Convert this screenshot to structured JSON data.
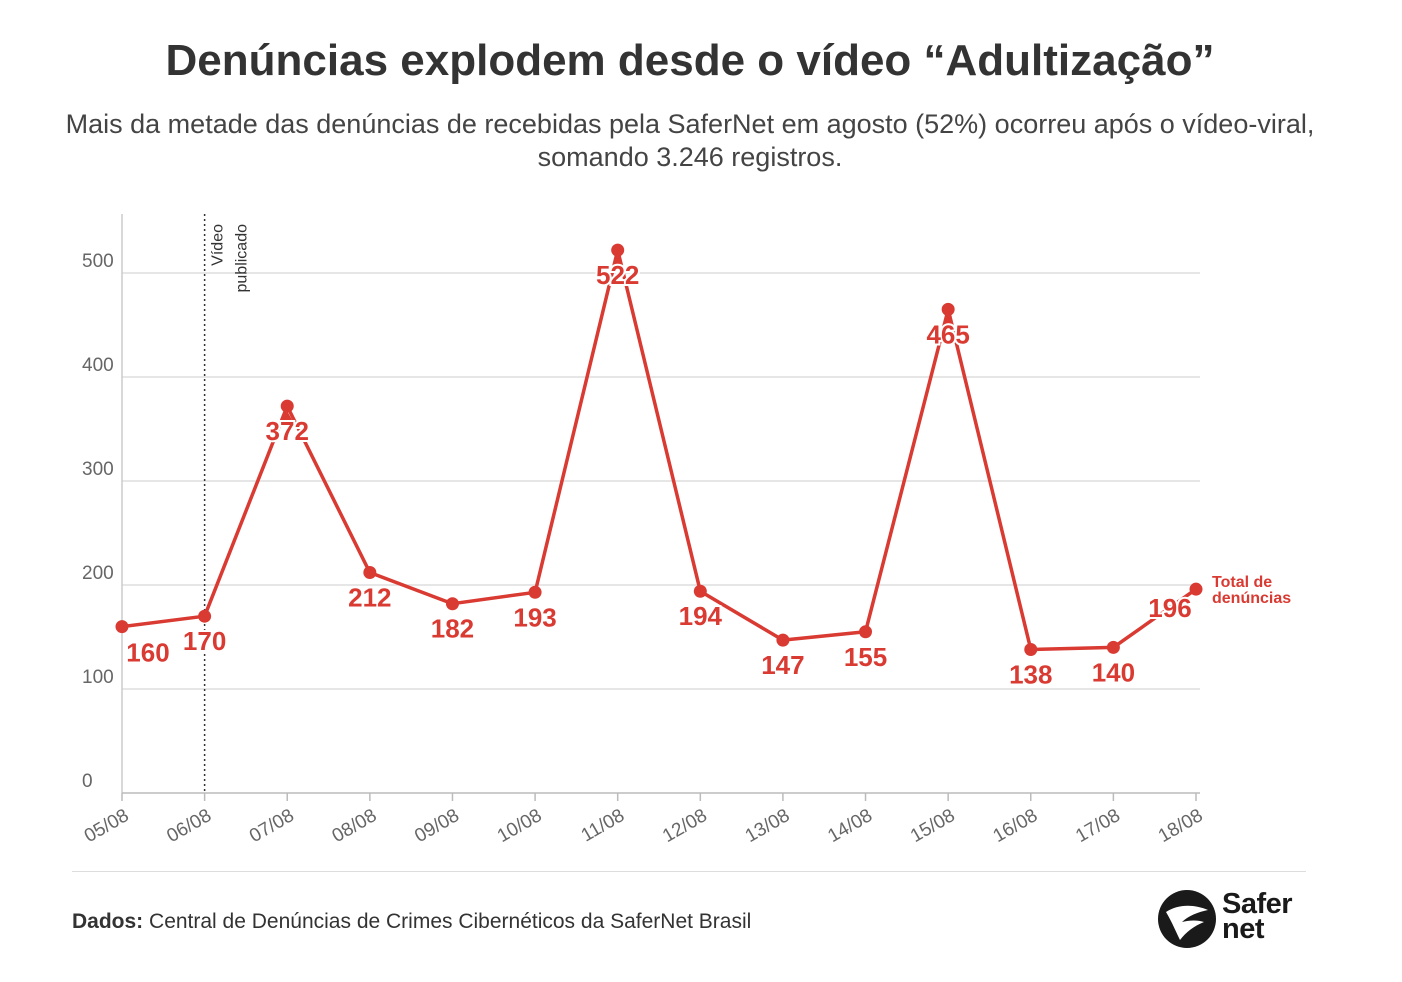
{
  "header": {
    "title": "Denúncias explodem desde o vídeo “Adultização”",
    "subtitle": "Mais da metade das denúncias de recebidas pela SaferNet em agosto (52%) ocorreu após o vídeo-viral, somando 3.246 registros."
  },
  "chart_data": {
    "type": "line",
    "title": "Denúncias explodem desde o vídeo “Adultização”",
    "subtitle": "Mais da metade das denúncias de recebidas pela SaferNet em agosto (52%) ocorreu após o vídeo-viral, somando 3.246 registros.",
    "categories": [
      "05/08",
      "06/08",
      "07/08",
      "08/08",
      "09/08",
      "10/08",
      "11/08",
      "12/08",
      "13/08",
      "14/08",
      "15/08",
      "16/08",
      "17/08",
      "18/08"
    ],
    "series": [
      {
        "name": "Total de denúncias",
        "values": [
          160,
          170,
          372,
          212,
          182,
          193,
          522,
          194,
          147,
          155,
          465,
          138,
          140,
          196
        ],
        "color": "#d93a32"
      }
    ],
    "yticks": [
      0,
      100,
      200,
      300,
      400,
      500
    ],
    "ylim": [
      0,
      556
    ],
    "grid": true,
    "annotation": {
      "x": "06/08",
      "label_line1": "Vídeo",
      "label_line2": "publicado"
    },
    "legend_label": [
      "Total de",
      "denúncias"
    ]
  },
  "footer": {
    "source_label": "Dados:",
    "source_text": "Central de Denúncias de Crimes Cibernéticos da SaferNet Brasil",
    "logo_line1": "Safer",
    "logo_line2": "net"
  }
}
